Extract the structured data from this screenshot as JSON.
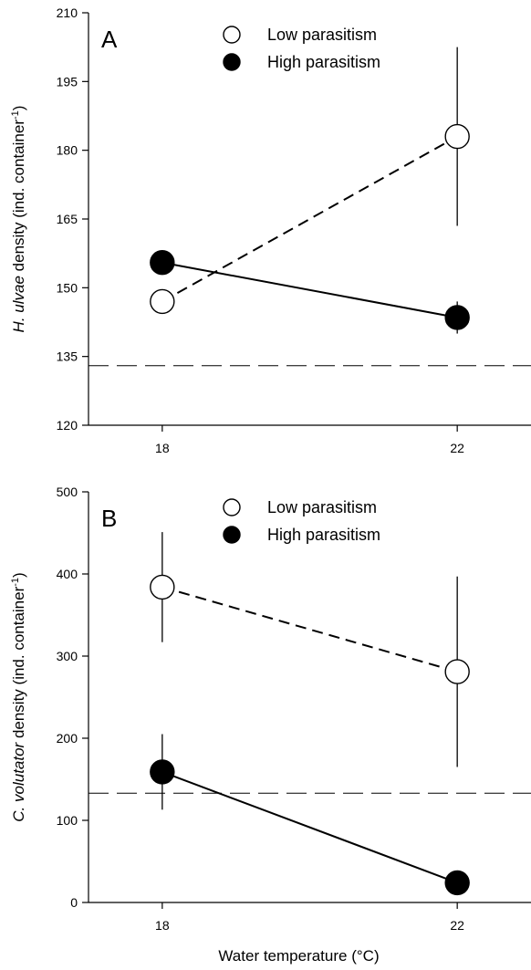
{
  "chart_data": [
    {
      "type": "line",
      "panel_label": "A",
      "ylabel": {
        "italic": "H. ulvae",
        "rest": " density (ind. container",
        "sup": "-1",
        "close": ")"
      },
      "xlabel": "",
      "categories": [
        "18",
        "22"
      ],
      "x": [
        18,
        22
      ],
      "xlim": [
        17,
        23
      ],
      "ylim": [
        120,
        210
      ],
      "yticks": [
        120,
        135,
        150,
        165,
        180,
        195,
        210
      ],
      "reference_line": 133,
      "series": [
        {
          "name": "Low parasitism",
          "marker": "open-circle",
          "line": "dashed",
          "values": [
            147,
            183
          ],
          "error": [
            0,
            19.5
          ]
        },
        {
          "name": "High parasitism",
          "marker": "filled-circle",
          "line": "solid",
          "values": [
            155.5,
            143.5
          ],
          "error": [
            0,
            3.5
          ]
        }
      ],
      "legend": "top-center"
    },
    {
      "type": "line",
      "panel_label": "B",
      "ylabel": {
        "italic": "C. volutator",
        "rest": " density (ind. container",
        "sup": "-1",
        "close": ")"
      },
      "xlabel": "Water temperature (°C)",
      "categories": [
        "18",
        "22"
      ],
      "x": [
        18,
        22
      ],
      "xlim": [
        17,
        23
      ],
      "ylim": [
        0,
        500
      ],
      "yticks": [
        0,
        100,
        200,
        300,
        400,
        500
      ],
      "reference_line": 133,
      "series": [
        {
          "name": "Low parasitism",
          "marker": "open-circle",
          "line": "dashed",
          "values": [
            384,
            281
          ],
          "error": [
            67,
            116
          ]
        },
        {
          "name": "High parasitism",
          "marker": "filled-circle",
          "line": "solid",
          "values": [
            159,
            24
          ],
          "error": [
            46,
            0
          ]
        }
      ],
      "legend": "top-center"
    }
  ]
}
